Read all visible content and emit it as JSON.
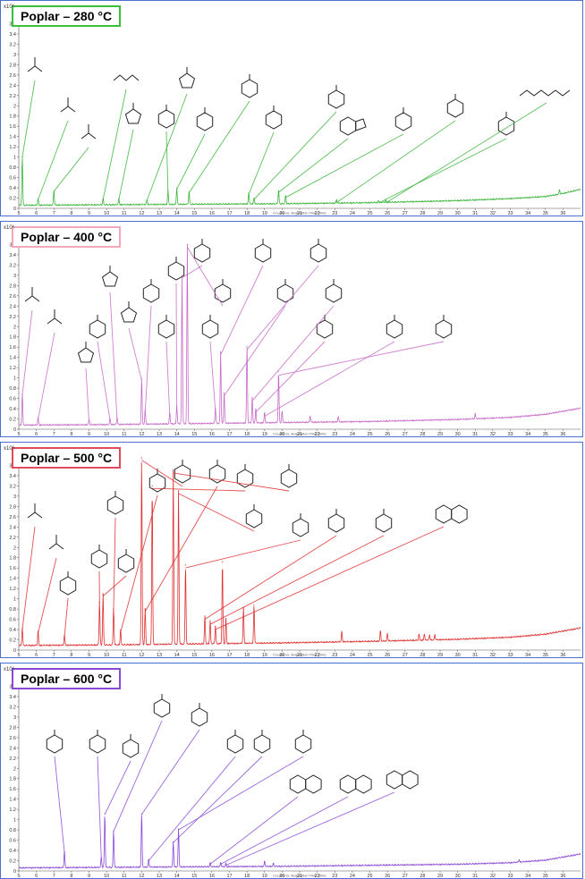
{
  "chart_data": [
    {
      "type": "line",
      "title": "Poplar – 280 °C",
      "y_exponent_label": "x10⁶",
      "xlabel": "Counts vs. Acquisition Time (min)",
      "xlim": [
        5,
        37
      ],
      "ylim": [
        0,
        3.8
      ],
      "x_ticks": [
        5,
        6,
        7,
        8,
        9,
        10,
        11,
        12,
        13,
        14,
        15,
        16,
        17,
        18,
        19,
        20,
        21,
        22,
        23,
        24,
        25,
        26,
        27,
        28,
        29,
        30,
        31,
        32,
        33,
        34,
        35,
        36
      ],
      "y_ticks": [
        0,
        0.2,
        0.4,
        0.6,
        0.8,
        1,
        1.2,
        1.4,
        1.6,
        1.8,
        2,
        2.2,
        2.4,
        2.6,
        2.8,
        3,
        3.2,
        3.4,
        3.6
      ],
      "color": "#3cb53c",
      "box_color": "#3cc03c",
      "baseline": [
        [
          5,
          0.05
        ],
        [
          10,
          0.06
        ],
        [
          15,
          0.07
        ],
        [
          20,
          0.08
        ],
        [
          25,
          0.1
        ],
        [
          30,
          0.14
        ],
        [
          33,
          0.18
        ],
        [
          35,
          0.22
        ],
        [
          36,
          0.28
        ],
        [
          37,
          0.36
        ]
      ],
      "peaks": [
        [
          5.2,
          0.95
        ],
        [
          6.1,
          0.12
        ],
        [
          7.0,
          0.28
        ],
        [
          9.8,
          0.12
        ],
        [
          10.7,
          0.12
        ],
        [
          12.3,
          0.1
        ],
        [
          13.5,
          0.28
        ],
        [
          14.0,
          0.32
        ],
        [
          14.7,
          0.25
        ],
        [
          18.1,
          0.22
        ],
        [
          18.4,
          0.12
        ],
        [
          19.8,
          0.26
        ],
        [
          20.2,
          0.16
        ],
        [
          23.1,
          0.06
        ],
        [
          25.5,
          0.04
        ],
        [
          25.9,
          0.04
        ],
        [
          35.8,
          0.08
        ]
      ],
      "compounds": [
        "acetic acid",
        "propanoic acid",
        "2-hydroxypropanoic acid",
        "ethyl 2-hydroxypropanoate",
        "2-methyl-2-cyclopentenone",
        "3-methyl-2-cyclopentenone",
        "phenol",
        "guaiacol",
        "3-methylcatechol",
        "4-ethylguaiacol",
        "syringol",
        "1,3-dimethylindole",
        "pyrogallol",
        "hydroxyindanone",
        "methylchromanone",
        "monopalmitin"
      ],
      "annotations": [
        "OH",
        "O",
        "14",
        "R",
        "N",
        "HO"
      ]
    },
    {
      "type": "line",
      "title": "Poplar – 400 °C",
      "y_exponent_label": "x10⁶",
      "xlabel": "Counts vs. Acquisition Time (min)",
      "xlim": [
        5,
        37
      ],
      "ylim": [
        0,
        3.8
      ],
      "x_ticks": [
        5,
        6,
        7,
        8,
        9,
        10,
        11,
        12,
        13,
        14,
        15,
        16,
        17,
        18,
        19,
        20,
        21,
        22,
        23,
        24,
        25,
        26,
        27,
        28,
        29,
        30,
        31,
        32,
        33,
        34,
        35,
        36
      ],
      "y_ticks": [
        0,
        0.2,
        0.4,
        0.6,
        0.8,
        1,
        1.2,
        1.4,
        1.6,
        1.8,
        2,
        2.2,
        2.4,
        2.6,
        2.8,
        3,
        3.2,
        3.4,
        3.6
      ],
      "color": "#c86ac8",
      "box_color": "#f3a8b8",
      "baseline": [
        [
          5,
          0.07
        ],
        [
          10,
          0.08
        ],
        [
          15,
          0.1
        ],
        [
          20,
          0.12
        ],
        [
          25,
          0.14
        ],
        [
          30,
          0.18
        ],
        [
          33,
          0.22
        ],
        [
          35,
          0.28
        ],
        [
          36,
          0.34
        ],
        [
          37,
          0.4
        ]
      ],
      "peaks": [
        [
          5.2,
          0.62
        ],
        [
          6.1,
          0.14
        ],
        [
          9.0,
          0.1
        ],
        [
          10.2,
          0.12
        ],
        [
          10.6,
          0.14
        ],
        [
          12.0,
          0.9
        ],
        [
          12.2,
          0.28
        ],
        [
          13.6,
          0.22
        ],
        [
          14.0,
          0.36
        ],
        [
          14.3,
          2.9
        ],
        [
          14.6,
          3.5
        ],
        [
          16.2,
          0.3
        ],
        [
          16.5,
          1.4
        ],
        [
          16.7,
          0.6
        ],
        [
          18.0,
          1.5
        ],
        [
          18.3,
          0.5
        ],
        [
          18.5,
          0.28
        ],
        [
          19.0,
          0.2
        ],
        [
          19.8,
          1.0
        ],
        [
          20.0,
          0.22
        ],
        [
          21.6,
          0.12
        ],
        [
          23.2,
          0.1
        ],
        [
          31.0,
          0.1
        ]
      ],
      "compounds": [
        "acetic acid",
        "propanoic acid",
        "2-cyclopentenone",
        "styrene",
        "2-methyl-2-cyclopentenone",
        "3-methyl-2-cyclopentenone",
        "phenol",
        "o-cresol",
        "p-cresol",
        "guaiacol",
        "catechol",
        "dimethylphenol",
        "4-methylguaiacol",
        "3-methoxycatechol",
        "4-methylcatechol",
        "4-vinylguaiacol",
        "syringol",
        "methyl syringol",
        "pyrogallol derivative"
      ],
      "annotations": [
        "OH",
        "O",
        "R",
        "HO"
      ]
    },
    {
      "type": "line",
      "title": "Poplar – 500 °C",
      "y_exponent_label": "x10⁶",
      "xlabel": "Counts vs. Acquisition Time (min)",
      "xlim": [
        5,
        37
      ],
      "ylim": [
        0,
        3.8
      ],
      "x_ticks": [
        5,
        6,
        7,
        8,
        9,
        10,
        11,
        12,
        13,
        14,
        15,
        16,
        17,
        18,
        19,
        20,
        21,
        22,
        23,
        24,
        25,
        26,
        27,
        28,
        29,
        30,
        31,
        32,
        33,
        34,
        35,
        36
      ],
      "y_ticks": [
        0,
        0.2,
        0.4,
        0.6,
        0.8,
        1,
        1.2,
        1.4,
        1.6,
        1.8,
        2,
        2.2,
        2.4,
        2.6,
        2.8,
        3,
        3.2,
        3.4,
        3.6
      ],
      "color": "#e03030",
      "box_color": "#e04a5a",
      "baseline": [
        [
          5,
          0.08
        ],
        [
          10,
          0.09
        ],
        [
          15,
          0.11
        ],
        [
          20,
          0.13
        ],
        [
          25,
          0.16
        ],
        [
          30,
          0.2
        ],
        [
          33,
          0.24
        ],
        [
          35,
          0.3
        ],
        [
          36,
          0.36
        ],
        [
          37,
          0.42
        ]
      ],
      "peaks": [
        [
          5.2,
          0.35
        ],
        [
          6.1,
          0.28
        ],
        [
          7.6,
          0.2
        ],
        [
          9.6,
          0.85
        ],
        [
          9.8,
          1.0
        ],
        [
          10.4,
          0.72
        ],
        [
          10.8,
          0.3
        ],
        [
          12.0,
          3.65
        ],
        [
          12.2,
          0.7
        ],
        [
          12.6,
          3.1
        ],
        [
          13.8,
          3.4
        ],
        [
          14.1,
          3.0
        ],
        [
          14.5,
          1.55
        ],
        [
          15.6,
          0.55
        ],
        [
          15.9,
          0.45
        ],
        [
          16.2,
          0.35
        ],
        [
          16.6,
          1.6
        ],
        [
          16.8,
          0.5
        ],
        [
          17.8,
          0.7
        ],
        [
          18.4,
          0.75
        ],
        [
          23.4,
          0.2
        ],
        [
          25.6,
          0.2
        ],
        [
          26.0,
          0.15
        ],
        [
          27.8,
          0.12
        ],
        [
          28.1,
          0.12
        ],
        [
          28.4,
          0.1
        ],
        [
          28.7,
          0.1
        ]
      ],
      "compounds": [
        "acetic acid",
        "propanoic acid",
        "ethylbenzene",
        "m-xylene",
        "styrene",
        "phenol",
        "trimethylbenzene",
        "o-cresol",
        "p-cresol",
        "guaiacol",
        "xylenol",
        "catechol",
        "4-methylguaiacol",
        "methylcatechol",
        "4-methylcatechol",
        "alkylnaphthol"
      ],
      "annotations": [
        "OH",
        "O",
        "R",
        "H₃C",
        "CH₃"
      ]
    },
    {
      "type": "line",
      "title": "Poplar – 600 °C",
      "y_exponent_label": "x10⁶",
      "xlabel": "Counts vs. Acquisition Time (min)",
      "xlim": [
        5,
        37
      ],
      "ylim": [
        0,
        3.8
      ],
      "x_ticks": [
        5,
        6,
        7,
        8,
        9,
        10,
        11,
        12,
        13,
        14,
        15,
        16,
        17,
        18,
        19,
        20,
        21,
        22,
        23,
        24,
        25,
        26,
        27,
        28,
        29,
        30,
        31,
        32,
        33,
        34,
        35,
        36
      ],
      "y_ticks": [
        0,
        0.2,
        0.4,
        0.6,
        0.8,
        1,
        1.2,
        1.4,
        1.6,
        1.8,
        2,
        2.2,
        2.4,
        2.6,
        2.8,
        3,
        3.2,
        3.4,
        3.6
      ],
      "color": "#8a4ad8",
      "box_color": "#8a4ad8",
      "baseline": [
        [
          5,
          0.05
        ],
        [
          10,
          0.06
        ],
        [
          15,
          0.07
        ],
        [
          20,
          0.08
        ],
        [
          25,
          0.1
        ],
        [
          30,
          0.12
        ],
        [
          33,
          0.15
        ],
        [
          35,
          0.2
        ],
        [
          36,
          0.26
        ],
        [
          37,
          0.32
        ]
      ],
      "peaks": [
        [
          7.6,
          0.32
        ],
        [
          9.7,
          0.2
        ],
        [
          9.9,
          1.05
        ],
        [
          10.4,
          0.72
        ],
        [
          12.0,
          1.05
        ],
        [
          12.4,
          0.15
        ],
        [
          13.8,
          0.5
        ],
        [
          14.1,
          0.75
        ],
        [
          15.9,
          0.08
        ],
        [
          16.5,
          0.08
        ],
        [
          16.8,
          0.06
        ],
        [
          19.0,
          0.1
        ],
        [
          19.5,
          0.06
        ],
        [
          33.5,
          0.05
        ]
      ],
      "compounds": [
        "ethylbenzene",
        "m-xylene",
        "o-xylene",
        "phenol",
        "trimethylbenzene",
        "p-cresol",
        "2,4-dimethylphenol",
        "3,5-dimethylphenol",
        "naphthalene",
        "2-methylnaphthalene",
        "1-methylnaphthalene"
      ],
      "annotations": [
        "OH"
      ]
    }
  ]
}
